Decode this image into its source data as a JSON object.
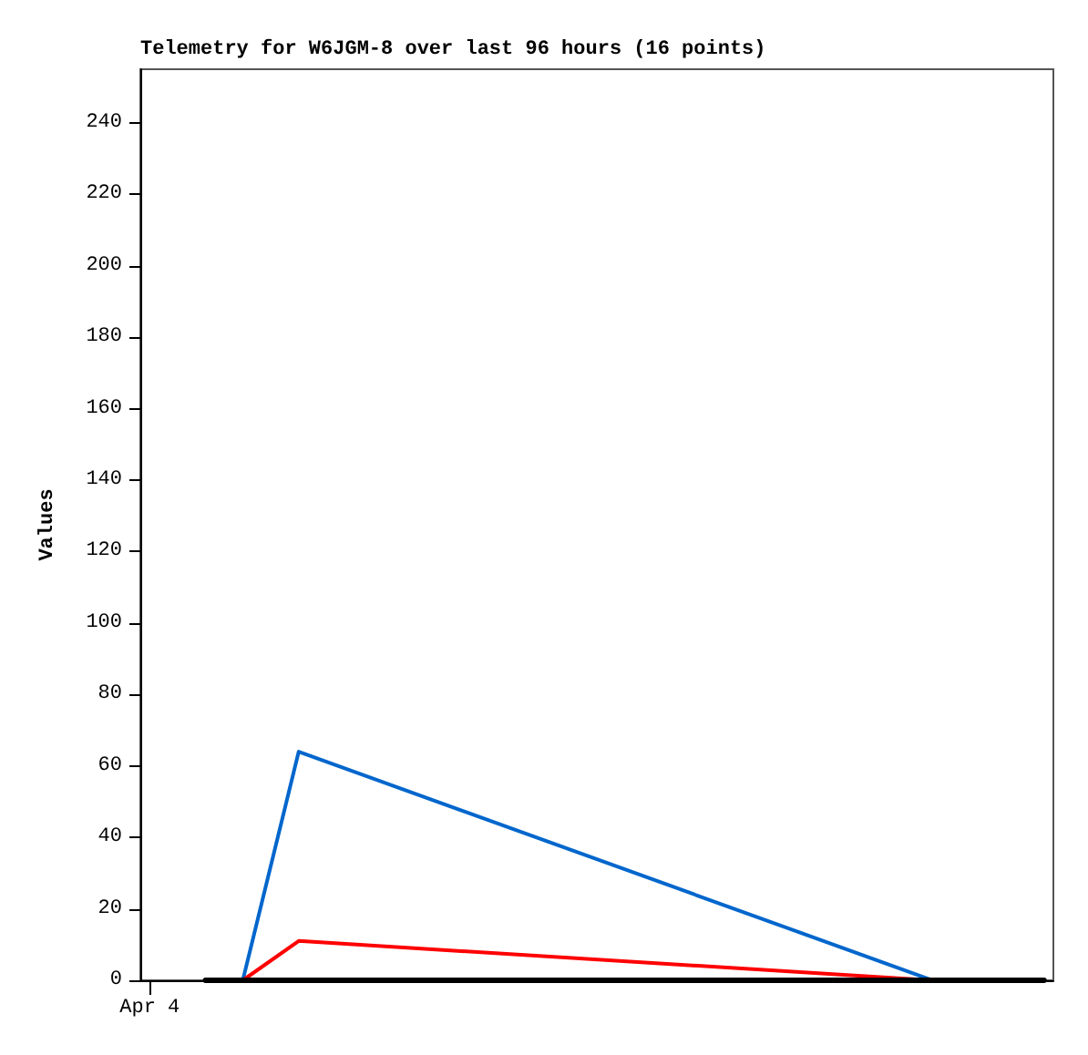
{
  "chart_data": {
    "type": "line",
    "title": "Telemetry for W6JGM-8 over last 96 hours (16 points)",
    "ylabel": "Values",
    "categories": [
      "Apr 4",
      null,
      null,
      null,
      null,
      null,
      null,
      null,
      null,
      null,
      null,
      null,
      null,
      null,
      null,
      null,
      null,
      null,
      null,
      null,
      null,
      null,
      null,
      null,
      null,
      null,
      null,
      null,
      null,
      null,
      null,
      null,
      null,
      null,
      null,
      null,
      null,
      null,
      null,
      null,
      null,
      null,
      null,
      null,
      null,
      null,
      null,
      null,
      null
    ],
    "ylim": [
      0,
      255
    ],
    "yticks": [
      0,
      20,
      40,
      60,
      80,
      100,
      120,
      140,
      160,
      180,
      200,
      220,
      240
    ],
    "series": [
      {
        "color": "#0066cc",
        "values": [
          null,
          null,
          null,
          null,
          null,
          0,
          null,
          null,
          64,
          null,
          null,
          null,
          null,
          null,
          null,
          null,
          null,
          null,
          null,
          null,
          null,
          null,
          null,
          null,
          null,
          null,
          null,
          null,
          null,
          null,
          null,
          null,
          null,
          null,
          null,
          null,
          null,
          null,
          null,
          null,
          null,
          null,
          0,
          null,
          null,
          null,
          null,
          null,
          null
        ]
      },
      {
        "color": "#ff0000",
        "values": [
          null,
          null,
          null,
          null,
          null,
          0,
          null,
          null,
          11,
          null,
          null,
          null,
          null,
          null,
          null,
          null,
          null,
          null,
          null,
          null,
          null,
          null,
          null,
          null,
          null,
          null,
          null,
          null,
          null,
          null,
          null,
          null,
          null,
          null,
          null,
          null,
          null,
          null,
          null,
          null,
          null,
          null,
          0,
          null,
          null,
          null,
          null,
          null,
          null
        ]
      },
      {
        "color": "#000000",
        "values": [
          null,
          null,
          null,
          0,
          null,
          0,
          null,
          null,
          0,
          null,
          null,
          null,
          null,
          null,
          null,
          null,
          null,
          null,
          null,
          null,
          null,
          null,
          null,
          null,
          null,
          null,
          null,
          null,
          null,
          null,
          null,
          null,
          null,
          null,
          null,
          null,
          null,
          null,
          null,
          null,
          null,
          null,
          0,
          null,
          null,
          null,
          null,
          null,
          0
        ]
      }
    ],
    "grid": false,
    "marker": "none",
    "line_style": "solid"
  }
}
